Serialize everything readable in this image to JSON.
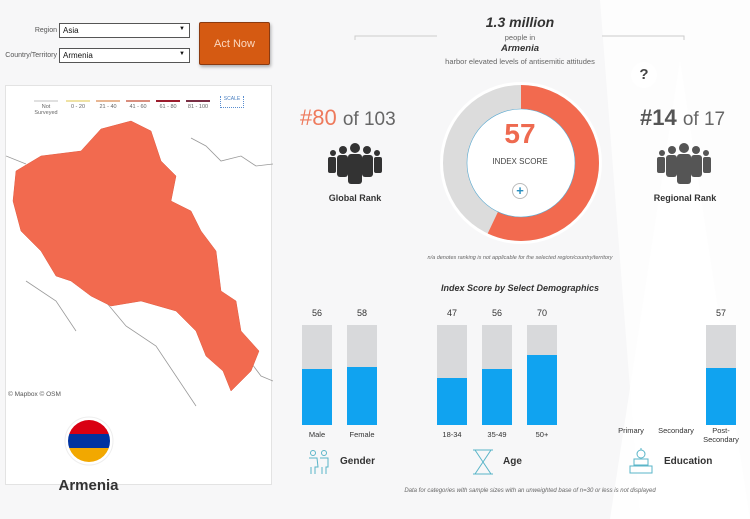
{
  "filters": {
    "region_label": "Region",
    "region_value": "Asia",
    "country_label": "Country/Territory",
    "country_value": "Armenia"
  },
  "act_now": "Act Now",
  "legend": {
    "items": [
      {
        "label": "Not Surveyed",
        "color": "#e0e0e0"
      },
      {
        "label": "0 - 20",
        "color": "#efe2a4"
      },
      {
        "label": "21 - 40",
        "color": "#e8b794"
      },
      {
        "label": "41 - 60",
        "color": "#d98e7e"
      },
      {
        "label": "61 - 80",
        "color": "#9b1d2e"
      },
      {
        "label": "81 - 100",
        "color": "#7a2f45"
      }
    ],
    "scale": "SCALE"
  },
  "map": {
    "attribution": "© Mapbox © OSM",
    "country_color": "#f26a4f"
  },
  "country_name": "Armenia",
  "headline": {
    "number": "1.3 million",
    "line1": "people in",
    "country": "Armenia",
    "line2": "harbor elevated levels of antisemitic attitudes"
  },
  "help": "?",
  "global_rank": {
    "rank": "#80",
    "of": "of 103",
    "label": "Global Rank"
  },
  "regional_rank": {
    "rank": "#14",
    "of": "of 17",
    "label": "Regional Rank"
  },
  "index": {
    "score": "57",
    "value": 57,
    "label": "INDEX SCORE",
    "expand": "+"
  },
  "note": "n/a denotes ranking is not applicable for the selected region/country/territory",
  "chart_data": {
    "type": "bar",
    "title": "Index Score by Select Demographics",
    "ylim": [
      0,
      100
    ],
    "groups": [
      {
        "name": "Gender",
        "categories": [
          "Male",
          "Female"
        ],
        "values": [
          56,
          58
        ]
      },
      {
        "name": "Age",
        "categories": [
          "18-34",
          "35-49",
          "50+"
        ],
        "values": [
          47,
          56,
          70
        ]
      },
      {
        "name": "Education",
        "categories": [
          "Primary",
          "Secondary",
          "Post-Secondary"
        ],
        "values": [
          null,
          null,
          57
        ]
      }
    ]
  },
  "footnote": "Data for categories with sample sizes with an unweighted base of n=30 or less is not displayed"
}
